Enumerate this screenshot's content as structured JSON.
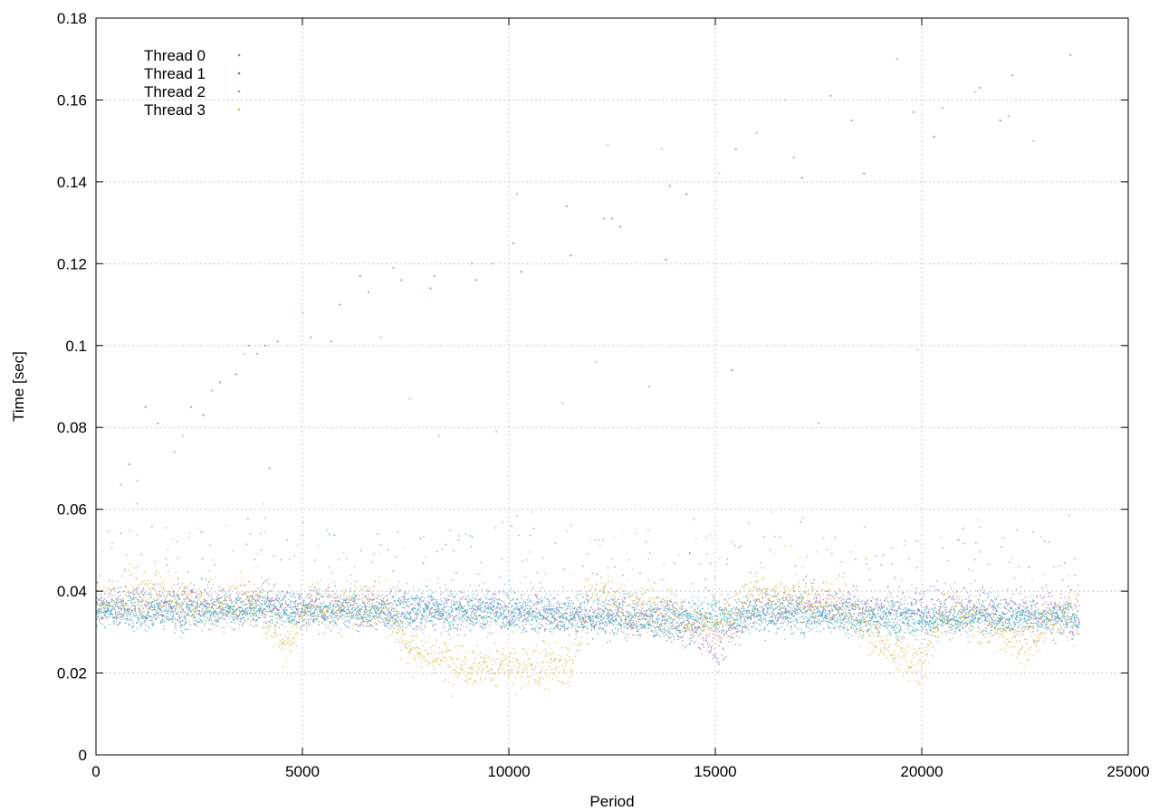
{
  "chart_data": {
    "type": "scatter",
    "xlabel": "Period",
    "ylabel": "Time [sec]",
    "xlim": [
      0,
      25000
    ],
    "ylim": [
      0,
      0.18
    ],
    "xticks": [
      "0",
      "5000",
      "10000",
      "15000",
      "20000",
      "25000"
    ],
    "yticks": [
      "0",
      "0.02",
      "0.04",
      "0.06",
      "0.08",
      "0.1",
      "0.12",
      "0.14",
      "0.16",
      "0.18"
    ],
    "grid": true,
    "legend_position": "top-left",
    "x_max_data": 23800,
    "series": [
      {
        "name": "Thread 0",
        "color": "#9e6fc9",
        "baseline": [
          [
            0,
            0.036
          ],
          [
            2000,
            0.037
          ],
          [
            4000,
            0.036
          ],
          [
            6000,
            0.036
          ],
          [
            8000,
            0.035
          ],
          [
            10000,
            0.036
          ],
          [
            12000,
            0.034
          ],
          [
            14000,
            0.033
          ],
          [
            15000,
            0.026
          ],
          [
            16000,
            0.036
          ],
          [
            18000,
            0.036
          ],
          [
            20000,
            0.036
          ],
          [
            22000,
            0.035
          ],
          [
            23800,
            0.035
          ]
        ],
        "spread": 0.006,
        "outliers": [
          [
            800,
            0.071
          ],
          [
            1500,
            0.081
          ],
          [
            2300,
            0.085
          ],
          [
            3000,
            0.091
          ],
          [
            3700,
            0.1
          ],
          [
            4400,
            0.101
          ],
          [
            5200,
            0.102
          ],
          [
            5900,
            0.11
          ],
          [
            6600,
            0.113
          ],
          [
            7400,
            0.116
          ],
          [
            8200,
            0.117
          ],
          [
            9100,
            0.12
          ],
          [
            10100,
            0.125
          ],
          [
            11400,
            0.134
          ],
          [
            12500,
            0.131
          ],
          [
            13900,
            0.139
          ],
          [
            15500,
            0.148
          ],
          [
            16900,
            0.146
          ],
          [
            18300,
            0.155
          ],
          [
            19800,
            0.157
          ],
          [
            21400,
            0.163
          ],
          [
            22200,
            0.166
          ],
          [
            23600,
            0.171
          ]
        ]
      },
      {
        "name": "Thread 1",
        "color": "#2a9d8f",
        "baseline": [
          [
            0,
            0.035
          ],
          [
            2000,
            0.035
          ],
          [
            4000,
            0.036
          ],
          [
            6000,
            0.035
          ],
          [
            8000,
            0.035
          ],
          [
            10000,
            0.034
          ],
          [
            12000,
            0.033
          ],
          [
            14000,
            0.032
          ],
          [
            16000,
            0.034
          ],
          [
            18000,
            0.034
          ],
          [
            20000,
            0.033
          ],
          [
            22000,
            0.034
          ],
          [
            23800,
            0.033
          ]
        ],
        "spread": 0.005,
        "outliers": [
          [
            1200,
            0.085
          ],
          [
            2600,
            0.083
          ],
          [
            3400,
            0.093
          ],
          [
            4100,
            0.1
          ],
          [
            5700,
            0.101
          ],
          [
            6400,
            0.117
          ],
          [
            8100,
            0.114
          ],
          [
            9200,
            0.116
          ],
          [
            10300,
            0.118
          ],
          [
            11500,
            0.122
          ],
          [
            12700,
            0.129
          ],
          [
            13800,
            0.121
          ],
          [
            14300,
            0.137
          ],
          [
            15400,
            0.094
          ],
          [
            17100,
            0.141
          ],
          [
            18600,
            0.142
          ],
          [
            20300,
            0.151
          ],
          [
            21900,
            0.155
          ]
        ]
      },
      {
        "name": "Thread 2",
        "color": "#56b4e9",
        "baseline": [
          [
            0,
            0.036
          ],
          [
            2000,
            0.035
          ],
          [
            4000,
            0.036
          ],
          [
            6000,
            0.035
          ],
          [
            8000,
            0.036
          ],
          [
            10000,
            0.036
          ],
          [
            12000,
            0.035
          ],
          [
            14000,
            0.035
          ],
          [
            16000,
            0.035
          ],
          [
            18000,
            0.034
          ],
          [
            20000,
            0.033
          ],
          [
            22000,
            0.034
          ],
          [
            23800,
            0.033
          ]
        ],
        "spread": 0.006,
        "outliers": [
          [
            600,
            0.066
          ],
          [
            1900,
            0.074
          ],
          [
            2800,
            0.089
          ],
          [
            3900,
            0.098
          ],
          [
            4200,
            0.07
          ],
          [
            7200,
            0.119
          ],
          [
            9600,
            0.12
          ],
          [
            10200,
            0.137
          ],
          [
            12300,
            0.131
          ],
          [
            13400,
            0.09
          ],
          [
            16000,
            0.152
          ],
          [
            17800,
            0.161
          ],
          [
            19400,
            0.17
          ],
          [
            20500,
            0.158
          ],
          [
            22100,
            0.156
          ]
        ]
      },
      {
        "name": "Thread 3",
        "color": "#e0b040",
        "baseline": [
          [
            0,
            0.038
          ],
          [
            1000,
            0.039
          ],
          [
            2000,
            0.038
          ],
          [
            3000,
            0.036
          ],
          [
            4000,
            0.038
          ],
          [
            4500,
            0.027
          ],
          [
            4800,
            0.03
          ],
          [
            5200,
            0.037
          ],
          [
            7000,
            0.036
          ],
          [
            7500,
            0.027
          ],
          [
            8500,
            0.023
          ],
          [
            9500,
            0.022
          ],
          [
            10500,
            0.021
          ],
          [
            11500,
            0.022
          ],
          [
            12000,
            0.04
          ],
          [
            13000,
            0.036
          ],
          [
            14000,
            0.035
          ],
          [
            15000,
            0.031
          ],
          [
            16000,
            0.04
          ],
          [
            17000,
            0.038
          ],
          [
            18000,
            0.038
          ],
          [
            19000,
            0.027
          ],
          [
            20000,
            0.022
          ],
          [
            20500,
            0.035
          ],
          [
            21500,
            0.033
          ],
          [
            22500,
            0.026
          ],
          [
            23000,
            0.033
          ],
          [
            23800,
            0.034
          ]
        ],
        "spread": 0.007,
        "outliers": [
          [
            1000,
            0.067
          ],
          [
            2100,
            0.078
          ],
          [
            3600,
            0.098
          ],
          [
            5000,
            0.108
          ],
          [
            6900,
            0.102
          ],
          [
            7600,
            0.087
          ],
          [
            8300,
            0.078
          ],
          [
            9700,
            0.079
          ],
          [
            11300,
            0.086
          ],
          [
            12100,
            0.096
          ],
          [
            12400,
            0.149
          ],
          [
            13700,
            0.148
          ],
          [
            15100,
            0.142
          ],
          [
            16700,
            0.16
          ],
          [
            17500,
            0.081
          ],
          [
            19900,
            0.099
          ],
          [
            21300,
            0.162
          ],
          [
            22700,
            0.15
          ]
        ]
      }
    ]
  }
}
